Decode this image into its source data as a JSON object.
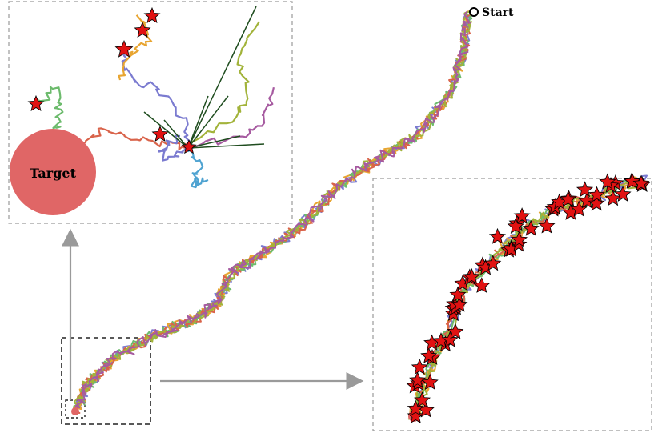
{
  "labels": {
    "start": "Start",
    "target": "Target"
  },
  "colors": {
    "path_palette": [
      "#7b7bd0",
      "#e8a531",
      "#6dbb6d",
      "#d9634a",
      "#a2b33a",
      "#a65aa0",
      "#4fa3d1"
    ],
    "target_fill": "#e06666",
    "star_fill": "#e11212",
    "star_stroke": "#000000",
    "frame": "#999999",
    "dashed_box": "#222222",
    "arrow": "#9a9a9a"
  },
  "icons": {
    "start_marker": "start-circle-icon",
    "star_marker": "star-icon",
    "target_marker": "target-circle-icon"
  }
}
